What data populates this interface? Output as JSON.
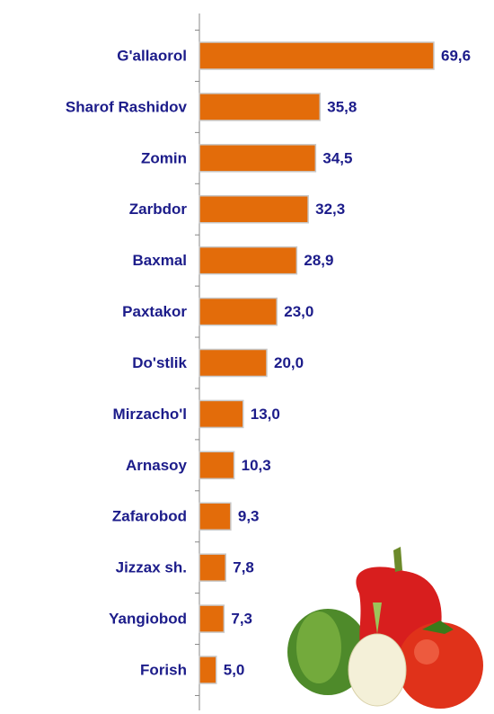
{
  "chart_data": {
    "type": "bar",
    "orientation": "horizontal",
    "categories": [
      "G'allaorol",
      "Sharof Rashidov",
      "Zomin",
      "Zarbdor",
      "Baxmal",
      "Paxtakor",
      "Do'stlik",
      "Mirzacho'l",
      "Arnasoy",
      "Zafarobod",
      "Jizzax sh.",
      "Yangiobod",
      "Forish"
    ],
    "values": [
      69.6,
      35.8,
      34.5,
      32.3,
      28.9,
      23.0,
      20.0,
      13.0,
      10.3,
      9.3,
      7.8,
      7.3,
      5.0
    ],
    "value_labels": [
      "69,6",
      "35,8",
      "34,5",
      "32,3",
      "28,9",
      "23,0",
      "20,0",
      "13,0",
      "10,3",
      "9,3",
      "7,8",
      "7,3",
      "5,0"
    ],
    "color": "#e36c0a",
    "xlim": [
      0,
      70
    ]
  }
}
